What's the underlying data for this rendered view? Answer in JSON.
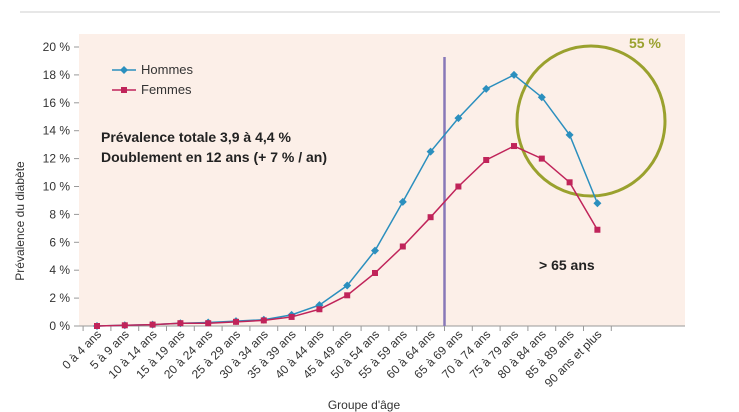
{
  "chart_data": {
    "type": "line",
    "title": "",
    "xlabel": "Groupe d'âge",
    "ylabel": "Prévalence du diabète",
    "ylim": [
      0,
      20
    ],
    "yticks": [
      "0 %",
      "2 %",
      "4 %",
      "6 %",
      "8 %",
      "10 %",
      "12 %",
      "14 %",
      "16 %",
      "18 %",
      "20 %"
    ],
    "grid": false,
    "legend_position": "top-left",
    "categories": [
      "0 à 4 ans",
      "5 à 9 ans",
      "10 à 14 ans",
      "15 à 19 ans",
      "20 à 24 ans",
      "25 à 29 ans",
      "30 à 34 ans",
      "35 à 39 ans",
      "40 à 44 ans",
      "45 à 49 ans",
      "50 à 54 ans",
      "55 à 59 ans",
      "60 à 64 ans",
      "65 à 69 ans",
      "70 à 74 ans",
      "75 à 79 ans",
      "80 à 84 ans",
      "85 à 89 ans",
      "90 ans et plus"
    ],
    "series": [
      {
        "name": "Hommes",
        "color": "#2b8fbe",
        "marker": "diamond",
        "values": [
          0.0,
          0.05,
          0.1,
          0.2,
          0.25,
          0.35,
          0.45,
          0.8,
          1.5,
          2.9,
          5.4,
          8.9,
          12.5,
          14.9,
          17.0,
          18.0,
          16.4,
          13.7,
          8.8
        ]
      },
      {
        "name": "Femmes",
        "color": "#c0245a",
        "marker": "square",
        "values": [
          0.0,
          0.05,
          0.1,
          0.2,
          0.2,
          0.3,
          0.4,
          0.65,
          1.2,
          2.2,
          3.8,
          5.7,
          7.8,
          10.0,
          11.9,
          12.9,
          12.0,
          10.3,
          6.9
        ]
      }
    ],
    "vertical_line": {
      "between": [
        "60 à 64 ans",
        "65 à 69 ans"
      ],
      "color": "#8878b8"
    },
    "annotations": {
      "total": "Prévalence totale 3,9 à 4,4 %",
      "doubling": "Doublement en 12 ans (+ 7 % / an)",
      "over65": "> 65 ans",
      "peak": "55 %"
    },
    "colors": {
      "plot_background": "#fcefe8",
      "ellipse": "#9aa12e"
    }
  }
}
